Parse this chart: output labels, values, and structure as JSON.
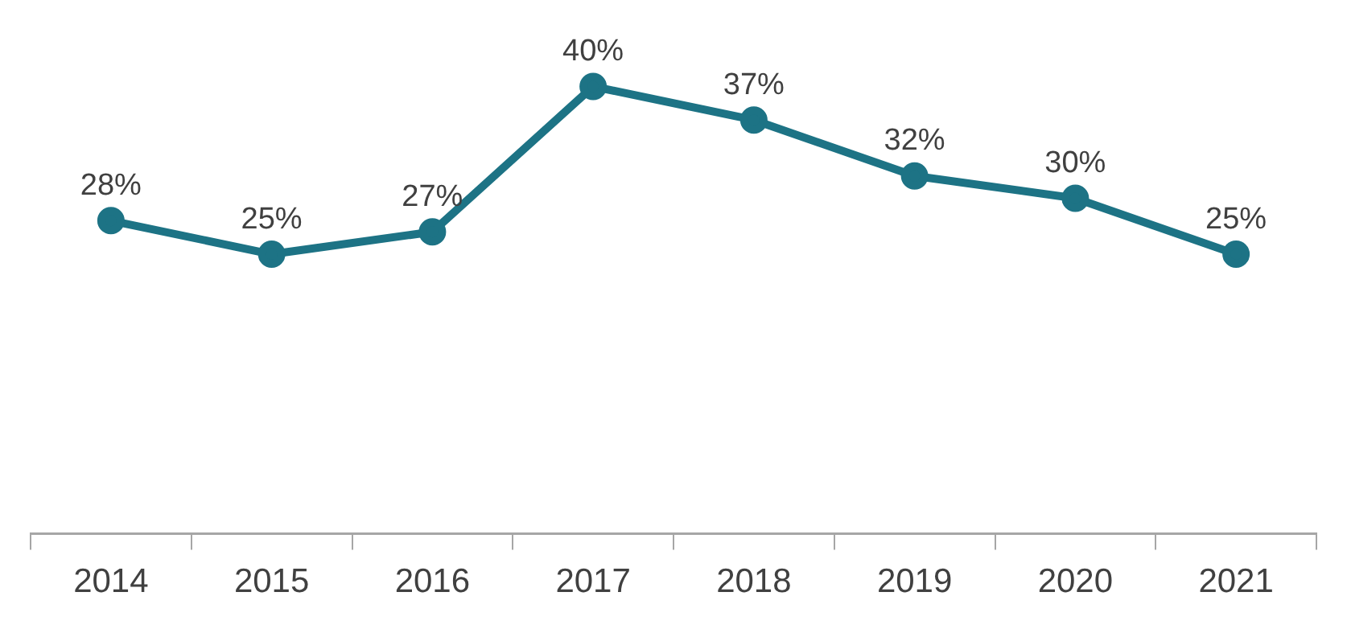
{
  "chart_data": {
    "type": "line",
    "categories": [
      "2014",
      "2015",
      "2016",
      "2017",
      "2018",
      "2019",
      "2020",
      "2021"
    ],
    "series": [
      {
        "color": "#1d7385",
        "values": [
          28,
          25,
          27,
          40,
          37,
          32,
          30,
          25
        ],
        "value_labels": [
          "28%",
          "25%",
          "27%",
          "40%",
          "37%",
          "32%",
          "30%",
          "25%"
        ]
      }
    ],
    "grid": false,
    "legend": false,
    "marker": "circle",
    "line_style": "solid"
  }
}
